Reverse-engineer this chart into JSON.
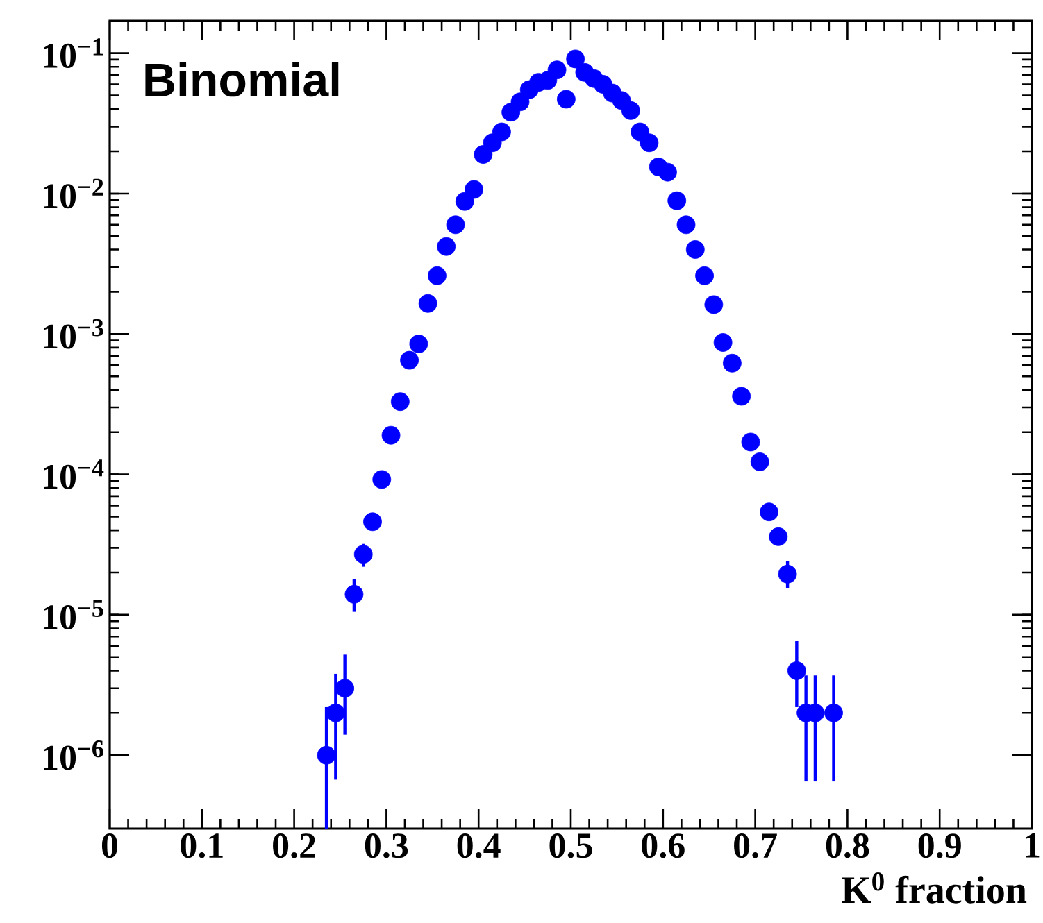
{
  "chart_data": {
    "type": "scatter",
    "xlabel": "K$^{0}$ fraction",
    "annotations": [
      "Binomial"
    ],
    "log": "y",
    "marker": "circle",
    "color": "#0000ff",
    "xlim": [
      0,
      1
    ],
    "ylim": [
      3e-07,
      0.17
    ],
    "xticks": [
      0,
      0.1,
      0.2,
      0.3,
      0.4,
      0.5,
      0.6,
      0.7,
      0.8,
      0.9,
      1
    ],
    "yticks": [
      {
        "value": 1e-06,
        "label": "10$^{−6}$"
      },
      {
        "value": 1e-05,
        "label": "10$^{−5}$"
      },
      {
        "value": 0.0001,
        "label": "10$^{−4}$"
      },
      {
        "value": 0.001,
        "label": "10$^{−3}$"
      },
      {
        "value": 0.01,
        "label": "10$^{−2}$"
      },
      {
        "value": 0.1,
        "label": "10$^{−1}$"
      }
    ],
    "x": [
      0.235,
      0.245,
      0.255,
      0.265,
      0.275,
      0.285,
      0.295,
      0.305,
      0.315,
      0.325,
      0.335,
      0.345,
      0.355,
      0.365,
      0.375,
      0.385,
      0.395,
      0.405,
      0.415,
      0.425,
      0.435,
      0.445,
      0.455,
      0.465,
      0.475,
      0.485,
      0.495,
      0.505,
      0.515,
      0.525,
      0.535,
      0.545,
      0.555,
      0.565,
      0.575,
      0.585,
      0.595,
      0.605,
      0.615,
      0.625,
      0.635,
      0.645,
      0.655,
      0.665,
      0.675,
      0.685,
      0.695,
      0.705,
      0.715,
      0.725,
      0.735,
      0.745,
      0.755,
      0.765,
      0.785
    ],
    "values": [
      1e-06,
      2e-06,
      3e-06,
      1.4e-05,
      2.7e-05,
      4.6e-05,
      9.2e-05,
      0.00019,
      0.00033,
      0.00065,
      0.00085,
      0.00165,
      0.0026,
      0.0042,
      0.006,
      0.0088,
      0.0107,
      0.019,
      0.023,
      0.0275,
      0.038,
      0.045,
      0.055,
      0.062,
      0.064,
      0.076,
      0.047,
      0.091,
      0.073,
      0.066,
      0.06,
      0.052,
      0.046,
      0.039,
      0.0275,
      0.023,
      0.0155,
      0.0142,
      0.0089,
      0.006,
      0.004,
      0.0026,
      0.00162,
      0.00087,
      0.00062,
      0.00036,
      0.00017,
      0.000123,
      5.4e-05,
      3.6e-05,
      1.95e-05,
      4e-06,
      2e-06,
      2e-06,
      2e-06
    ],
    "errors": [
      [
        3e-07,
        2.2e-06
      ],
      [
        6.7e-07,
        3.8e-06
      ],
      [
        1.4e-06,
        5.2e-06
      ],
      [
        1.05e-05,
        1.8e-05
      ],
      [
        2.2e-05,
        3.2e-05
      ],
      null,
      null,
      null,
      null,
      null,
      null,
      null,
      null,
      null,
      null,
      null,
      null,
      null,
      null,
      null,
      null,
      null,
      null,
      null,
      null,
      null,
      null,
      null,
      null,
      null,
      null,
      null,
      null,
      null,
      null,
      null,
      null,
      null,
      null,
      null,
      null,
      null,
      null,
      null,
      null,
      null,
      null,
      null,
      null,
      null,
      [
        1.55e-05,
        2.4e-05
      ],
      [
        2.2e-06,
        6.5e-06
      ],
      [
        6.5e-07,
        3.7e-06
      ],
      [
        6.5e-07,
        3.7e-06
      ],
      [
        6.5e-07,
        3.7e-06
      ]
    ]
  }
}
